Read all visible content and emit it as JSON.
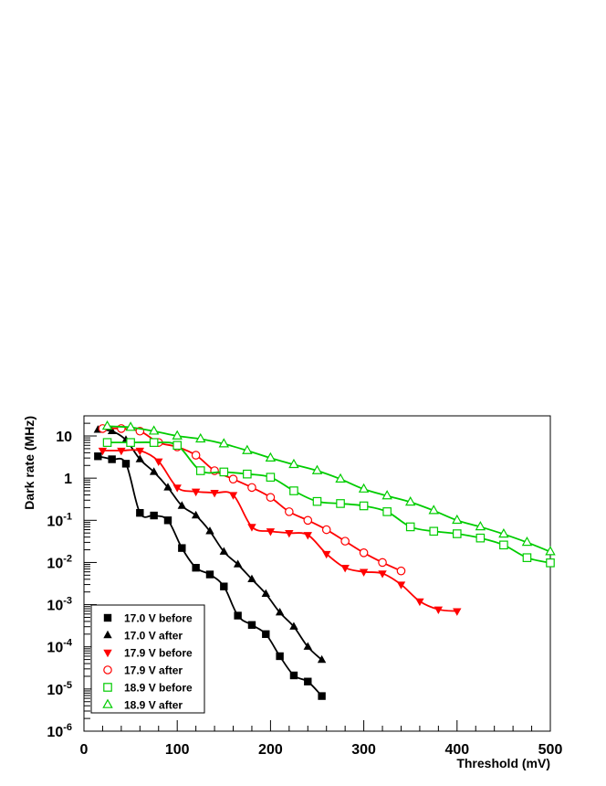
{
  "chart_data": {
    "type": "line",
    "xlabel": "Threshold (mV)",
    "ylabel": "Dark rate (MHz)",
    "xlim": [
      0,
      500
    ],
    "ylim": [
      1e-06,
      30
    ],
    "yscale": "log",
    "grid": false,
    "legend_position": "bottom-left",
    "x_ticks": [
      0,
      100,
      200,
      300,
      400,
      500
    ],
    "x_tick_labels": [
      "0",
      "100",
      "200",
      "300",
      "400",
      "500"
    ],
    "y_ticks": [
      1e-06,
      1e-05,
      0.0001,
      0.001,
      0.01,
      0.1,
      1,
      10
    ],
    "y_tick_labels": [
      {
        "base": "10",
        "exp": "-6"
      },
      {
        "base": "10",
        "exp": "-5"
      },
      {
        "base": "10",
        "exp": "-4"
      },
      {
        "base": "10",
        "exp": "-3"
      },
      {
        "base": "10",
        "exp": "-2"
      },
      {
        "base": "10",
        "exp": "-1"
      },
      {
        "base": "1",
        "exp": ""
      },
      {
        "base": "10",
        "exp": ""
      }
    ],
    "series": [
      {
        "name": "17.0 V before",
        "color": "#000000",
        "marker": "square-filled",
        "x": [
          15,
          30,
          45,
          60,
          75,
          90,
          105,
          120,
          135,
          150,
          165,
          180,
          195,
          210,
          225,
          240,
          255
        ],
        "y": [
          3.3,
          2.8,
          2.2,
          0.15,
          0.13,
          0.1,
          0.022,
          0.0075,
          0.0052,
          0.0027,
          0.00055,
          0.00033,
          0.0002,
          6e-05,
          2.1e-05,
          1.5e-05,
          6.8e-06
        ]
      },
      {
        "name": "17.0 V after",
        "color": "#000000",
        "marker": "triangle-up-filled",
        "x": [
          15,
          30,
          45,
          60,
          75,
          90,
          105,
          120,
          135,
          150,
          165,
          180,
          195,
          210,
          225,
          240,
          255
        ],
        "y": [
          14,
          13,
          8,
          2.8,
          1.4,
          0.6,
          0.22,
          0.13,
          0.055,
          0.018,
          0.009,
          0.004,
          0.0018,
          0.00065,
          0.0003,
          0.0001,
          4.9e-05
        ]
      },
      {
        "name": "17.9 V before",
        "color": "#ff0000",
        "marker": "triangle-down-filled",
        "x": [
          20,
          40,
          60,
          80,
          100,
          120,
          140,
          160,
          180,
          200,
          220,
          240,
          260,
          280,
          300,
          320,
          340,
          360,
          380,
          400
        ],
        "y": [
          4.5,
          4.5,
          4.5,
          2.5,
          0.6,
          0.48,
          0.45,
          0.4,
          0.07,
          0.055,
          0.05,
          0.045,
          0.016,
          0.0075,
          0.006,
          0.0055,
          0.003,
          0.0012,
          0.00077,
          0.0007
        ]
      },
      {
        "name": "17.9 V after",
        "color": "#ff0000",
        "marker": "circle-open",
        "x": [
          20,
          40,
          60,
          80,
          100,
          120,
          140,
          160,
          180,
          200,
          220,
          240,
          260,
          280,
          300,
          320,
          340
        ],
        "y": [
          15,
          15,
          13,
          7,
          5.5,
          3.5,
          1.5,
          0.95,
          0.6,
          0.35,
          0.16,
          0.1,
          0.06,
          0.032,
          0.017,
          0.01,
          0.0063
        ]
      },
      {
        "name": "18.9 V before",
        "color": "#00cc00",
        "marker": "square-open",
        "x": [
          25,
          50,
          75,
          100,
          125,
          150,
          175,
          200,
          225,
          250,
          275,
          300,
          325,
          350,
          375,
          400,
          425,
          450,
          475,
          500
        ],
        "y": [
          7,
          7,
          7,
          6,
          1.5,
          1.4,
          1.25,
          1.05,
          0.5,
          0.28,
          0.25,
          0.22,
          0.16,
          0.07,
          0.055,
          0.048,
          0.038,
          0.026,
          0.013,
          0.0098
        ]
      },
      {
        "name": "18.9 V after",
        "color": "#00cc00",
        "marker": "triangle-up-open",
        "x": [
          25,
          50,
          75,
          100,
          125,
          150,
          175,
          200,
          225,
          250,
          275,
          300,
          325,
          350,
          375,
          400,
          425,
          450,
          475,
          500
        ],
        "y": [
          17,
          16,
          13,
          10,
          8.5,
          6.5,
          4.5,
          3,
          2.1,
          1.5,
          0.95,
          0.55,
          0.38,
          0.27,
          0.17,
          0.1,
          0.07,
          0.047,
          0.03,
          0.018
        ]
      }
    ]
  }
}
